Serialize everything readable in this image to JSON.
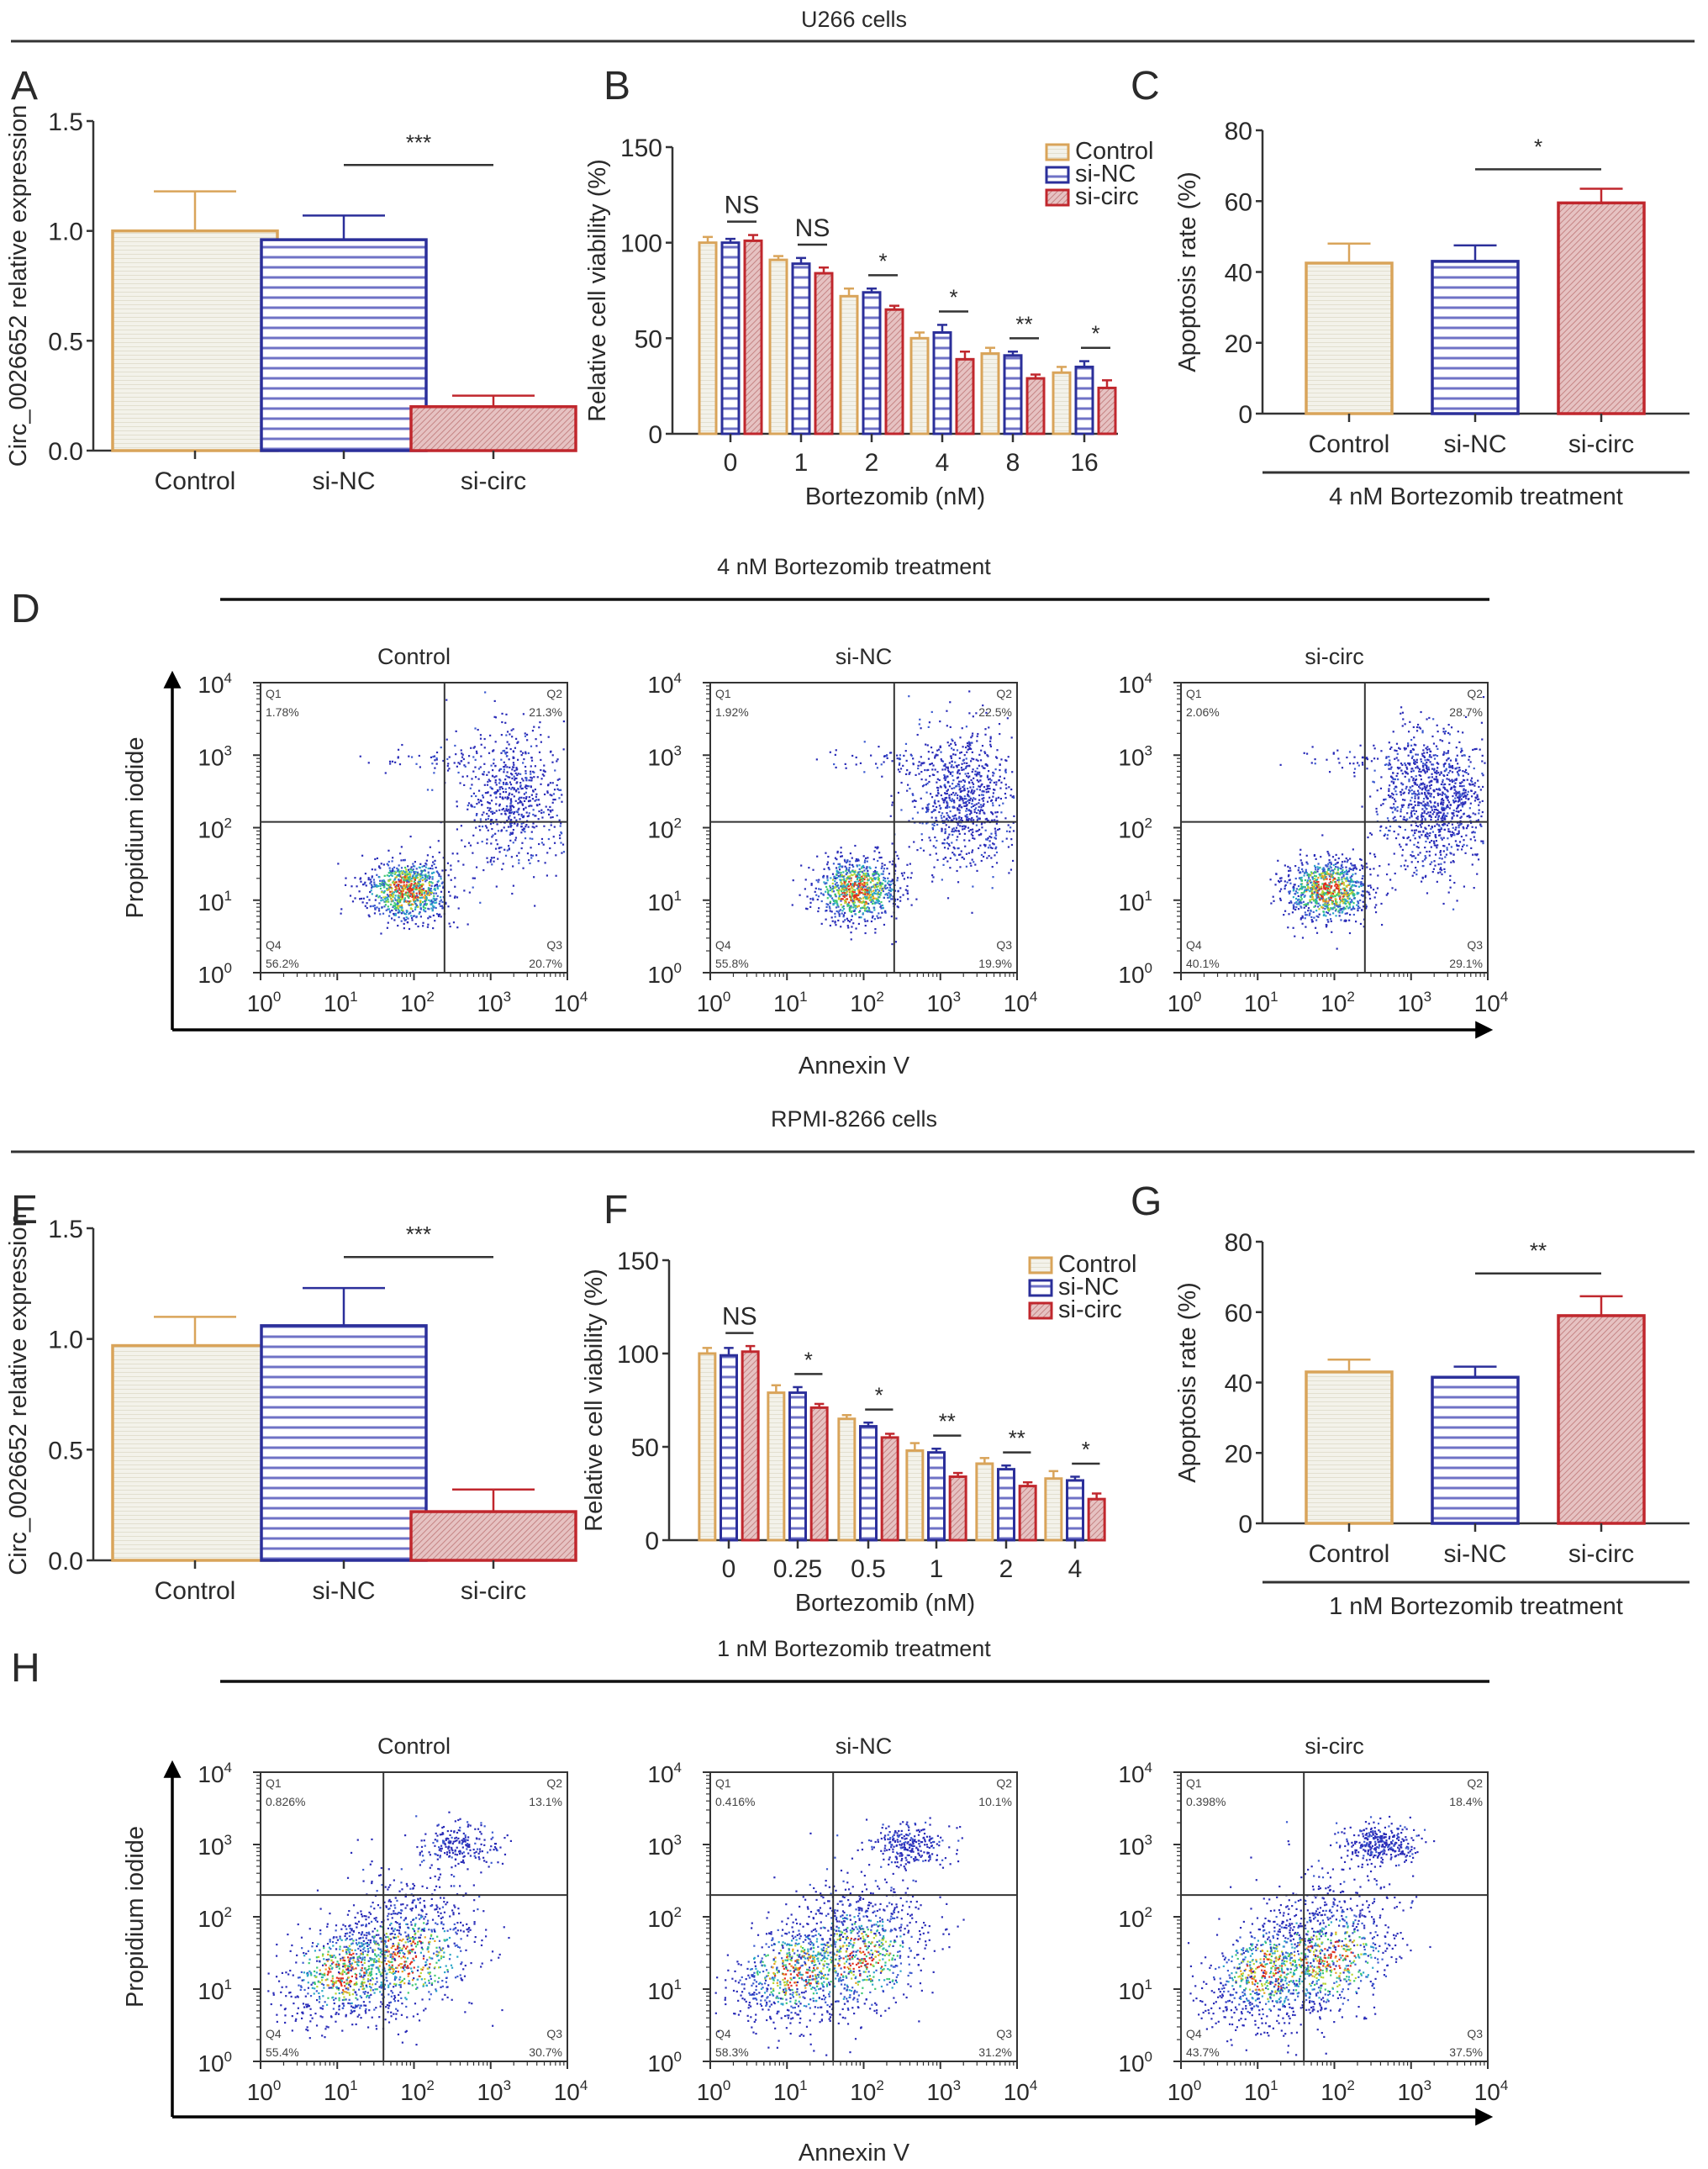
{
  "figure": {
    "sections": [
      {
        "id": "u266",
        "title": "U266 cells"
      },
      {
        "id": "rpmi",
        "title": "RPMI-8266 cells"
      }
    ],
    "colors": {
      "control": "#d9a45a",
      "si_nc": "#2b2f9a",
      "si_circ": "#c0272d",
      "si_circ_fill": "#d8a0a0",
      "si_nc_stripe": "#6f72c6",
      "control_fill": "#f3f2ea",
      "axis": "#333333"
    }
  },
  "chart_data": [
    {
      "panel": "A",
      "type": "bar",
      "title": "",
      "ylabel": "Circ_0026652 relative expression",
      "xlabel": "",
      "categories": [
        "Control",
        "si-NC",
        "si-circ"
      ],
      "values": [
        1.0,
        0.96,
        0.2
      ],
      "errors": [
        0.18,
        0.11,
        0.05
      ],
      "ylim": [
        0,
        1.5
      ],
      "yticks": [
        "0.0",
        "0.5",
        "1.0",
        "1.5"
      ],
      "yticks_values": [
        0,
        0.5,
        1.0,
        1.5
      ],
      "significance": [
        {
          "from": "si-NC",
          "to": "si-circ",
          "label": "***",
          "y": 1.3
        }
      ],
      "grid": false
    },
    {
      "panel": "B",
      "type": "bar",
      "ylabel": "Relative cell viability (%)",
      "xlabel": "Bortezomib (nM)",
      "categories": [
        "0",
        "1",
        "2",
        "4",
        "8",
        "16"
      ],
      "series": [
        {
          "name": "Control",
          "values": [
            100,
            91,
            72,
            50,
            42,
            32
          ],
          "errors": [
            3,
            2,
            4,
            3,
            3,
            3
          ]
        },
        {
          "name": "si-NC",
          "values": [
            100,
            89,
            74,
            53,
            41,
            35
          ],
          "errors": [
            2,
            3,
            2,
            4,
            2,
            3
          ]
        },
        {
          "name": "si-circ",
          "values": [
            101,
            84,
            65,
            39,
            29,
            24
          ],
          "errors": [
            3,
            3,
            2,
            4,
            2,
            4
          ]
        }
      ],
      "ylim": [
        0,
        150
      ],
      "yticks": [
        "0",
        "50",
        "100",
        "150"
      ],
      "yticks_values": [
        0,
        50,
        100,
        150
      ],
      "significance": [
        "NS",
        "NS",
        "*",
        "*",
        "**",
        "*"
      ],
      "legend": {
        "entries": [
          "Control",
          "si-NC",
          "si-circ"
        ],
        "position": "top-right"
      },
      "grid": false
    },
    {
      "panel": "C",
      "type": "bar",
      "ylabel": "Apoptosis rate (%)",
      "xlabel": "4 nM Bortezomib treatment",
      "categories": [
        "Control",
        "si-NC",
        "si-circ"
      ],
      "values": [
        42.5,
        43,
        59.5
      ],
      "errors": [
        5.5,
        4.5,
        4
      ],
      "ylim": [
        0,
        80
      ],
      "yticks": [
        "0",
        "20",
        "40",
        "60",
        "80"
      ],
      "yticks_values": [
        0,
        20,
        40,
        60,
        80
      ],
      "significance": [
        {
          "from": "si-NC",
          "to": "si-circ",
          "label": "*",
          "y": 69
        }
      ],
      "grid": false
    },
    {
      "panel": "D",
      "type": "scatter",
      "title": "4 nM Bortezomib treatment",
      "xlabel": "Annexin V",
      "ylabel": "Propidium iodide",
      "xscale": "log",
      "yscale": "log",
      "xlim": [
        1,
        10000
      ],
      "ylim": [
        1,
        10000
      ],
      "gates": {
        "x": 250,
        "y": 120
      },
      "plots": [
        {
          "title": "Control",
          "Q1": "1.78%",
          "Q2": "21.3%",
          "Q3": "20.7%",
          "Q4": "56.2%"
        },
        {
          "title": "si-NC",
          "Q1": "1.92%",
          "Q2": "22.5%",
          "Q3": "19.9%",
          "Q4": "55.8%"
        },
        {
          "title": "si-circ",
          "Q1": "2.06%",
          "Q2": "28.7%",
          "Q3": "29.1%",
          "Q4": "40.1%"
        }
      ]
    },
    {
      "panel": "E",
      "type": "bar",
      "ylabel": "Circ_0026652 relative expression",
      "xlabel": "",
      "categories": [
        "Control",
        "si-NC",
        "si-circ"
      ],
      "values": [
        0.97,
        1.06,
        0.22
      ],
      "errors": [
        0.13,
        0.17,
        0.1
      ],
      "ylim": [
        0,
        1.5
      ],
      "yticks": [
        "0.0",
        "0.5",
        "1.0",
        "1.5"
      ],
      "yticks_values": [
        0,
        0.5,
        1.0,
        1.5
      ],
      "significance": [
        {
          "from": "si-NC",
          "to": "si-circ",
          "label": "***",
          "y": 1.37
        }
      ],
      "grid": false
    },
    {
      "panel": "F",
      "type": "bar",
      "ylabel": "Relative cell viability (%)",
      "xlabel": "Bortezomib (nM)",
      "categories": [
        "0",
        "0.25",
        "0.5",
        "1",
        "2",
        "4"
      ],
      "series": [
        {
          "name": "Control",
          "values": [
            100,
            79,
            65,
            48,
            41,
            33
          ],
          "errors": [
            3,
            4,
            2,
            4,
            3,
            4
          ]
        },
        {
          "name": "si-NC",
          "values": [
            99,
            79,
            61,
            47,
            38,
            32
          ],
          "errors": [
            4,
            3,
            2,
            2,
            2,
            2
          ]
        },
        {
          "name": "si-circ",
          "values": [
            101,
            71,
            55,
            34,
            29,
            22
          ],
          "errors": [
            3,
            2,
            2,
            2,
            2,
            3
          ]
        }
      ],
      "ylim": [
        0,
        150
      ],
      "yticks": [
        "0",
        "50",
        "100",
        "150"
      ],
      "yticks_values": [
        0,
        50,
        100,
        150
      ],
      "significance": [
        "NS",
        "*",
        "*",
        "**",
        "**",
        "*"
      ],
      "legend": {
        "entries": [
          "Control",
          "si-NC",
          "si-circ"
        ],
        "position": "top-right"
      },
      "grid": false
    },
    {
      "panel": "G",
      "type": "bar",
      "ylabel": "Apoptosis rate (%)",
      "xlabel": "1 nM Bortezomib treatment",
      "categories": [
        "Control",
        "si-NC",
        "si-circ"
      ],
      "values": [
        43,
        41.5,
        59
      ],
      "errors": [
        3.5,
        3,
        5.5
      ],
      "ylim": [
        0,
        80
      ],
      "yticks": [
        "0",
        "20",
        "40",
        "60",
        "80"
      ],
      "yticks_values": [
        0,
        20,
        40,
        60,
        80
      ],
      "significance": [
        {
          "from": "si-NC",
          "to": "si-circ",
          "label": "**",
          "y": 71
        }
      ],
      "grid": false
    },
    {
      "panel": "H",
      "type": "scatter",
      "title": "1 nM Bortezomib treatment",
      "xlabel": "Annexin V",
      "ylabel": "Propidium iodide",
      "xscale": "log",
      "yscale": "log",
      "xlim": [
        1,
        10000
      ],
      "ylim": [
        1,
        10000
      ],
      "gates": {
        "x": 40,
        "y": 200
      },
      "plots": [
        {
          "title": "Control",
          "Q1": "0.826%",
          "Q2": "13.1%",
          "Q3": "30.7%",
          "Q4": "55.4%"
        },
        {
          "title": "si-NC",
          "Q1": "0.416%",
          "Q2": "10.1%",
          "Q3": "31.2%",
          "Q4": "58.3%"
        },
        {
          "title": "si-circ",
          "Q1": "0.398%",
          "Q2": "18.4%",
          "Q3": "37.5%",
          "Q4": "43.7%"
        }
      ]
    }
  ],
  "labels": {
    "log_ticks": [
      "10",
      "10",
      "10",
      "10",
      "10"
    ],
    "log_exponents": [
      "0",
      "1",
      "2",
      "3",
      "4"
    ],
    "quadrant_names": [
      "Q1",
      "Q2",
      "Q3",
      "Q4"
    ]
  }
}
